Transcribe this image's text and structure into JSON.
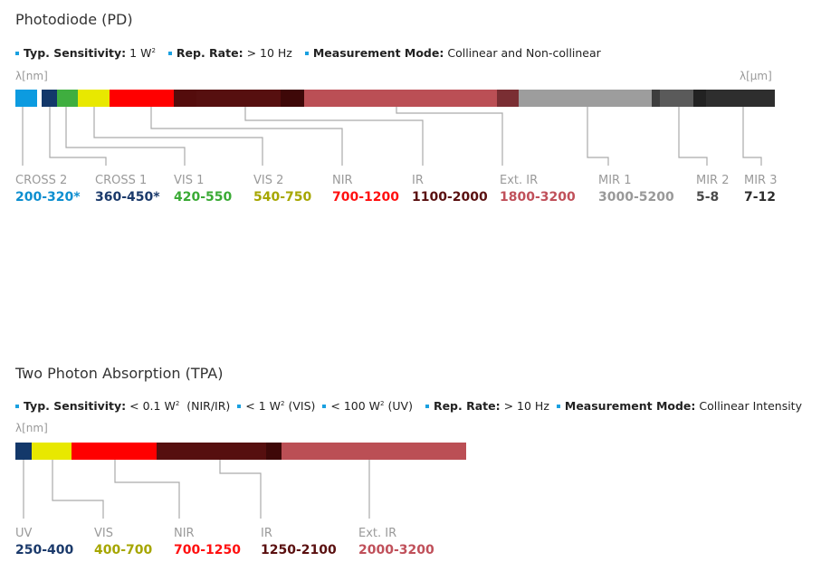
{
  "pd": {
    "title": "Photodiode (PD)",
    "info": [
      {
        "label": "Typ. Sensitivity:",
        "value": "1 W",
        "sup": "2"
      },
      {
        "label": "Rep. Rate:",
        "value": "> 10 Hz"
      },
      {
        "label": "Measurement Mode:",
        "value": "Collinear and Non-collinear"
      }
    ],
    "unit_left": "λ[nm]",
    "unit_right": "λ[µm]",
    "bands": [
      {
        "name": "CROSS 2",
        "range": "200-320*",
        "color": "#0e8fd0"
      },
      {
        "name": "CROSS 1",
        "range": "360-450*",
        "color": "#1b3a6b"
      },
      {
        "name": "VIS 1",
        "range": "420-550",
        "color": "#3aaa35"
      },
      {
        "name": "VIS 2",
        "range": "540-750",
        "color": "#a6a600"
      },
      {
        "name": "NIR",
        "range": "700-1200",
        "color": "#ff1010"
      },
      {
        "name": "IR",
        "range": "1100-2000",
        "color": "#5a1010"
      },
      {
        "name": "Ext. IR",
        "range": "1800-3200",
        "color": "#c0505a"
      },
      {
        "name": "MIR 1",
        "range": "3000-5200",
        "color": "#999999"
      },
      {
        "name": "MIR 2",
        "range": "5-8",
        "color": "#4a4a4a"
      },
      {
        "name": "MIR 3",
        "range": "7-12",
        "color": "#2d2d2d"
      }
    ]
  },
  "tpa": {
    "title": "Two Photon Absorption (TPA)",
    "sens_label": "Typ. Sensitivity:",
    "sens_1": "< 0.1 W",
    "sens_1_suffix": "(NIR/IR)",
    "sens_2": "< 1 W",
    "sens_2_suffix": "(VIS)",
    "sens_3": "< 100 W",
    "sens_3_suffix": "(UV)",
    "sup": "2",
    "rep_label": "Rep. Rate:",
    "rep_value": "> 10 Hz",
    "mode_label": "Measurement Mode:",
    "mode_value": "Collinear Intensity",
    "unit_left": "λ[nm]",
    "bands": [
      {
        "name": "UV",
        "range": "250-400",
        "color": "#1b3a6b"
      },
      {
        "name": "VIS",
        "range": "400-700",
        "color": "#a6a600"
      },
      {
        "name": "NIR",
        "range": "700-1250",
        "color": "#ff1010"
      },
      {
        "name": "IR",
        "range": "1250-2100",
        "color": "#5a1010"
      },
      {
        "name": "Ext. IR",
        "range": "2000-3200",
        "color": "#c0505a"
      }
    ]
  }
}
